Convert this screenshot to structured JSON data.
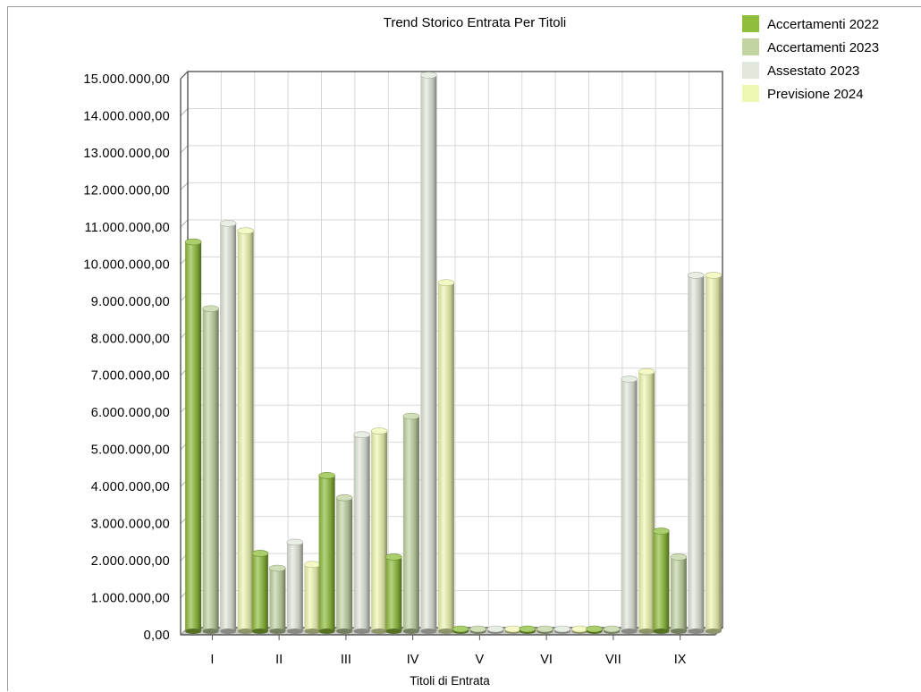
{
  "chart_data": {
    "type": "bar",
    "title": "Trend Storico Entrata Per Titoli",
    "xlabel": "Titoli di Entrata",
    "ylabel": "",
    "ylim": [
      0,
      15000000
    ],
    "y_ticks": [
      "0,00",
      "1.000.000,00",
      "2.000.000,00",
      "3.000.000,00",
      "4.000.000,00",
      "5.000.000,00",
      "6.000.000,00",
      "7.000.000,00",
      "8.000.000,00",
      "9.000.000,00",
      "10.000.000,00",
      "11.000.000,00",
      "12.000.000,00",
      "13.000.000,00",
      "14.000.000,00",
      "15.000.000,00"
    ],
    "categories": [
      "I",
      "II",
      "III",
      "IV",
      "V",
      "VI",
      "VII",
      "IX"
    ],
    "grid": true,
    "legend_position": "top-right",
    "series": [
      {
        "name": "Accertamenti 2022",
        "color": "#8fbd3c",
        "values": [
          10500000,
          2100000,
          4200000,
          2000000,
          60000,
          60000,
          60000,
          2700000
        ]
      },
      {
        "name": "Accertamenti 2023",
        "color": "#c2d4a2",
        "values": [
          8700000,
          1700000,
          3600000,
          5800000,
          60000,
          60000,
          60000,
          2000000
        ]
      },
      {
        "name": "Assestato 2023",
        "color": "#e2e8dc",
        "values": [
          11000000,
          2400000,
          5300000,
          15000000,
          60000,
          60000,
          6800000,
          9600000
        ]
      },
      {
        "name": "Previsione 2024",
        "color": "#f0f7b2",
        "values": [
          10800000,
          1800000,
          5400000,
          9400000,
          60000,
          60000,
          7000000,
          9600000
        ]
      }
    ]
  }
}
